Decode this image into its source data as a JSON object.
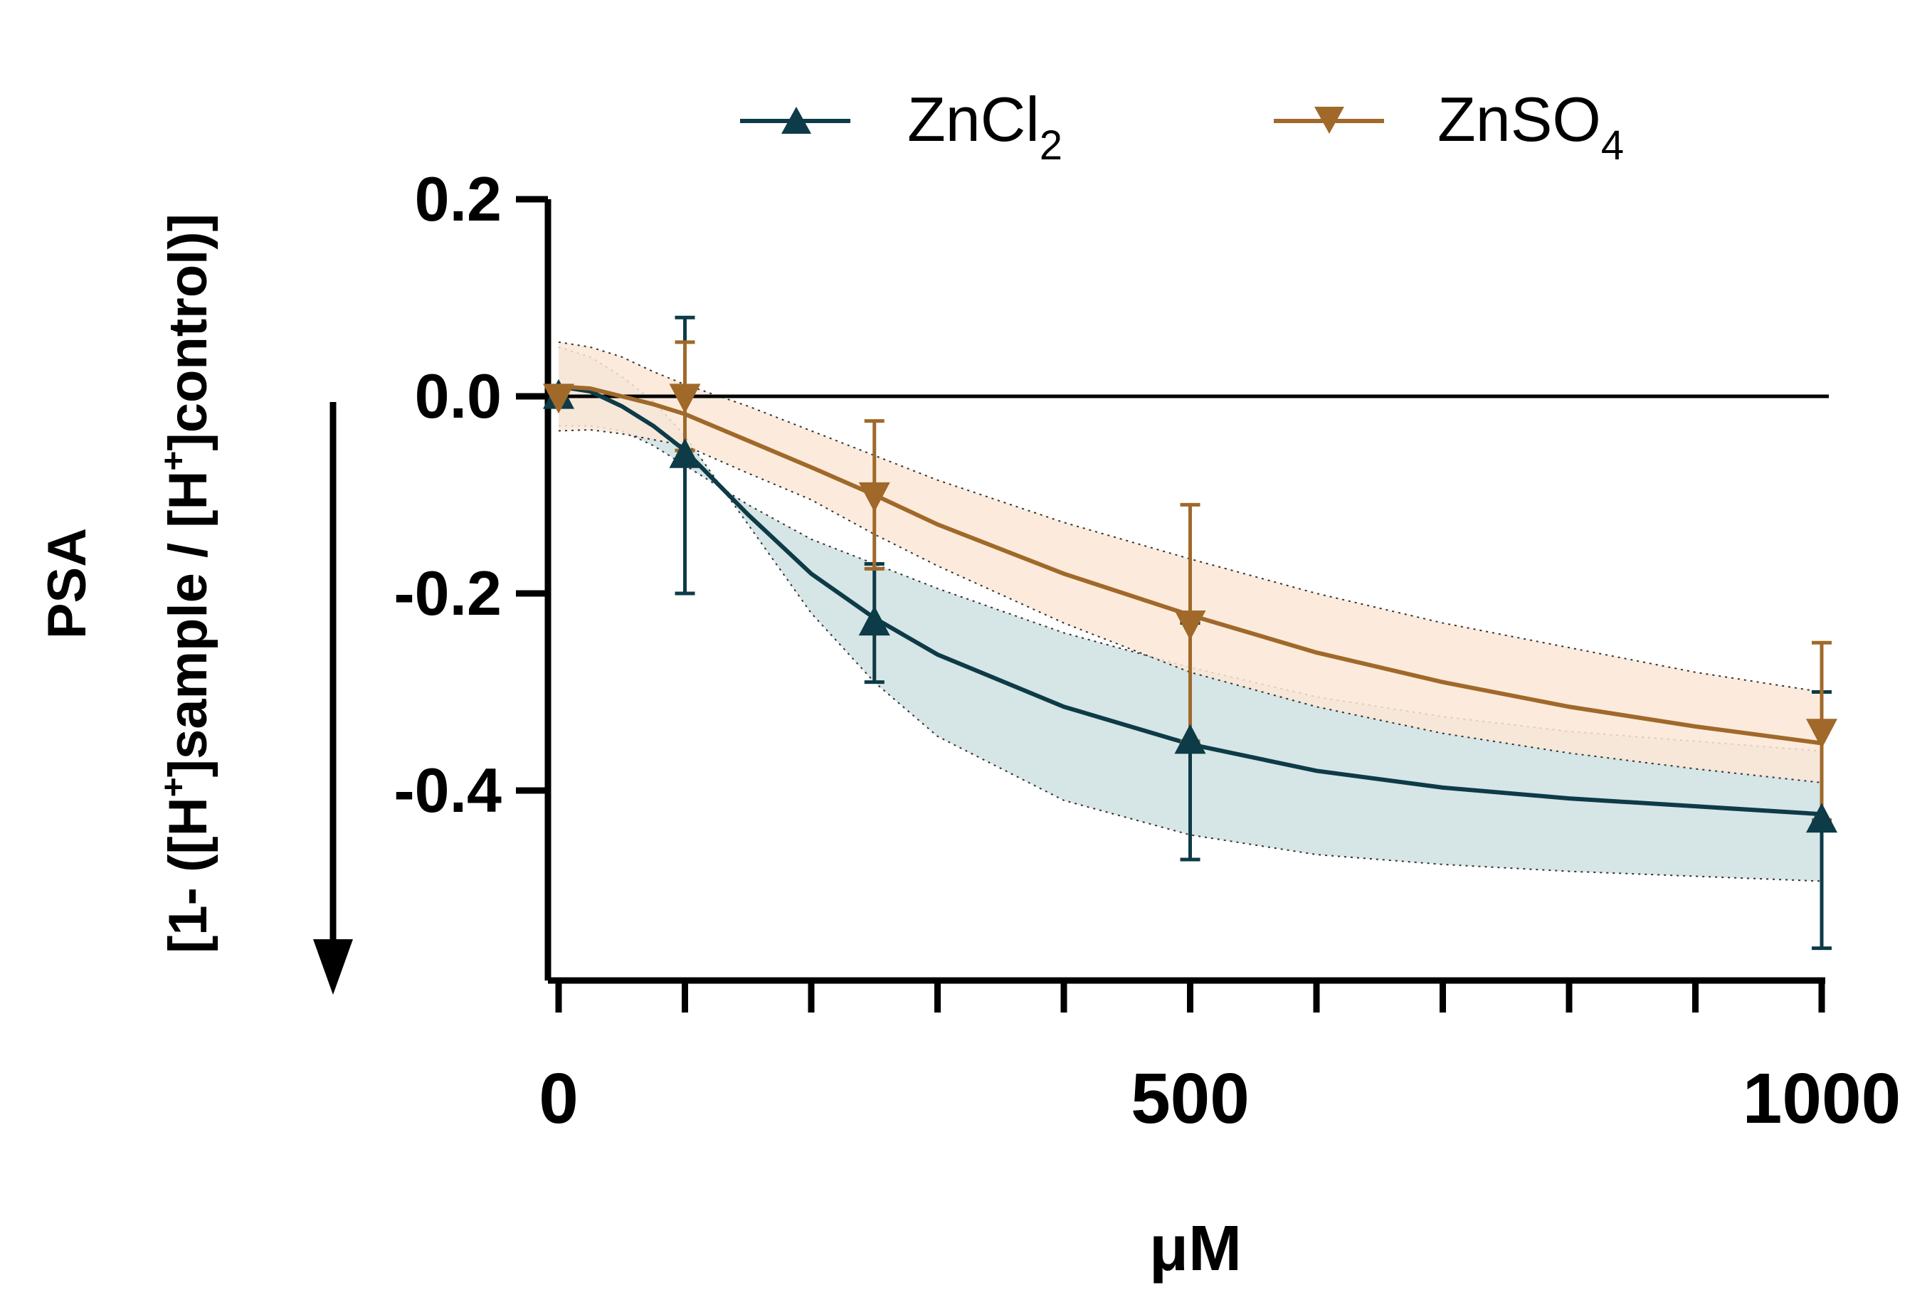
{
  "chart_data": {
    "type": "line",
    "title": "",
    "xlabel": "μM",
    "ylabel_line1": "PSA",
    "ylabel_line2": "[1- ([H",
    "ylabel_sup1": "+",
    "ylabel_line2b": "]sample / [H",
    "ylabel_sup2": "+",
    "ylabel_line2c": "]control)]",
    "xlim": [
      0,
      1000
    ],
    "ylim": [
      -0.58,
      0.2
    ],
    "x_ticks": [
      0,
      500,
      1000
    ],
    "x_tick_labels": [
      "0",
      "500",
      "1000"
    ],
    "x_minor_ticks": [
      0,
      100,
      200,
      300,
      400,
      500,
      600,
      700,
      800,
      900,
      1000
    ],
    "y_ticks": [
      0.2,
      0.0,
      -0.2,
      -0.4
    ],
    "y_tick_labels": [
      "0.2",
      "0.0",
      "-0.2",
      "-0.4"
    ],
    "reference_line": 0.0,
    "legend_position": "top",
    "series": [
      {
        "name": "ZnCl",
        "subscript": "2",
        "marker": "triangle-up",
        "color": "#0d3b47",
        "band_color": "#cfe0e2",
        "x": [
          0,
          100,
          250,
          500,
          1000
        ],
        "y": [
          0.0,
          -0.06,
          -0.23,
          -0.35,
          -0.43
        ],
        "err": [
          0.0,
          0.14,
          0.06,
          0.12,
          0.13
        ],
        "fit_x": [
          0,
          25,
          50,
          75,
          100,
          150,
          200,
          250,
          300,
          400,
          500,
          600,
          700,
          800,
          900,
          1000
        ],
        "fit_y": [
          0.01,
          0.005,
          -0.01,
          -0.03,
          -0.055,
          -0.12,
          -0.18,
          -0.225,
          -0.262,
          -0.315,
          -0.353,
          -0.38,
          -0.397,
          -0.408,
          -0.416,
          -0.424
        ],
        "fit_lo": [
          0.05,
          0.04,
          0.02,
          -0.005,
          -0.04,
          -0.13,
          -0.22,
          -0.29,
          -0.345,
          -0.41,
          -0.445,
          -0.465,
          -0.475,
          -0.482,
          -0.487,
          -0.492
        ],
        "fit_hi": [
          -0.03,
          -0.03,
          -0.035,
          -0.05,
          -0.07,
          -0.11,
          -0.145,
          -0.17,
          -0.195,
          -0.24,
          -0.275,
          -0.305,
          -0.325,
          -0.34,
          -0.35,
          -0.36
        ]
      },
      {
        "name": "ZnSO",
        "subscript": "4",
        "marker": "triangle-down",
        "color": "#a0692a",
        "band_color": "#fbe7d6",
        "x": [
          0,
          100,
          250,
          500,
          1000
        ],
        "y": [
          0.0,
          0.0,
          -0.1,
          -0.23,
          -0.34
        ],
        "err": [
          0.0,
          0.055,
          0.075,
          0.12,
          0.09
        ],
        "fit_x": [
          0,
          25,
          50,
          75,
          100,
          150,
          200,
          250,
          300,
          400,
          500,
          600,
          700,
          800,
          900,
          1000
        ],
        "fit_y": [
          0.01,
          0.008,
          0.0,
          -0.008,
          -0.018,
          -0.045,
          -0.072,
          -0.1,
          -0.13,
          -0.18,
          -0.222,
          -0.26,
          -0.29,
          -0.315,
          -0.335,
          -0.352
        ],
        "fit_lo": [
          0.055,
          0.05,
          0.04,
          0.025,
          0.012,
          -0.01,
          -0.035,
          -0.06,
          -0.085,
          -0.128,
          -0.165,
          -0.2,
          -0.23,
          -0.255,
          -0.28,
          -0.3
        ],
        "fit_hi": [
          -0.035,
          -0.034,
          -0.038,
          -0.044,
          -0.05,
          -0.078,
          -0.105,
          -0.14,
          -0.172,
          -0.23,
          -0.28,
          -0.315,
          -0.342,
          -0.362,
          -0.378,
          -0.392
        ]
      }
    ]
  }
}
